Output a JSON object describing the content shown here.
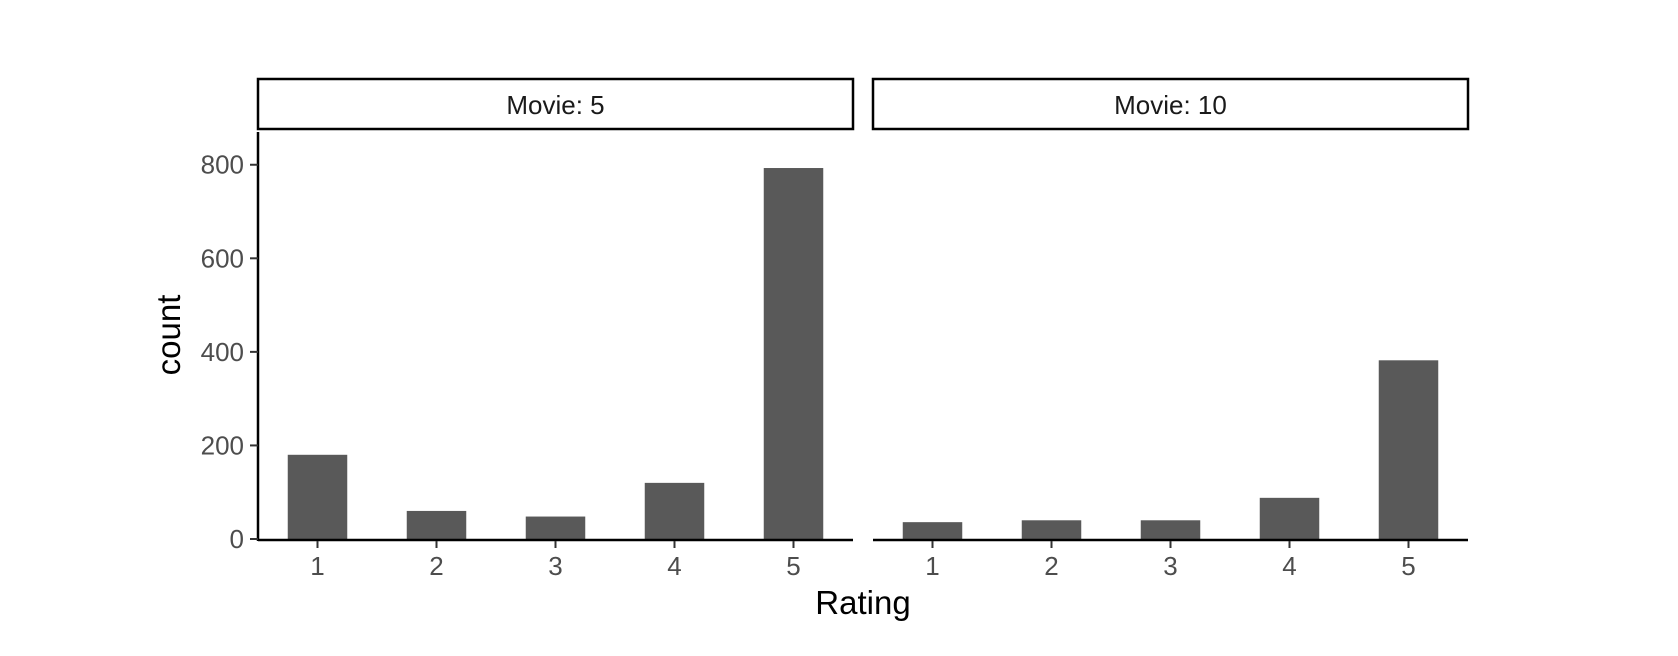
{
  "chart_data": {
    "type": "bar",
    "xlabel": "Rating",
    "ylabel": "count",
    "ylim": [
      0,
      870
    ],
    "yticks": [
      0,
      200,
      400,
      600,
      800
    ],
    "categories": [
      "1",
      "2",
      "3",
      "4",
      "5"
    ],
    "grid": false,
    "bar_color": "#595959",
    "panels": [
      {
        "strip": "Movie: 5",
        "values": [
          180,
          60,
          48,
          120,
          793
        ]
      },
      {
        "strip": "Movie: 10",
        "values": [
          36,
          40,
          40,
          88,
          382
        ]
      }
    ]
  }
}
